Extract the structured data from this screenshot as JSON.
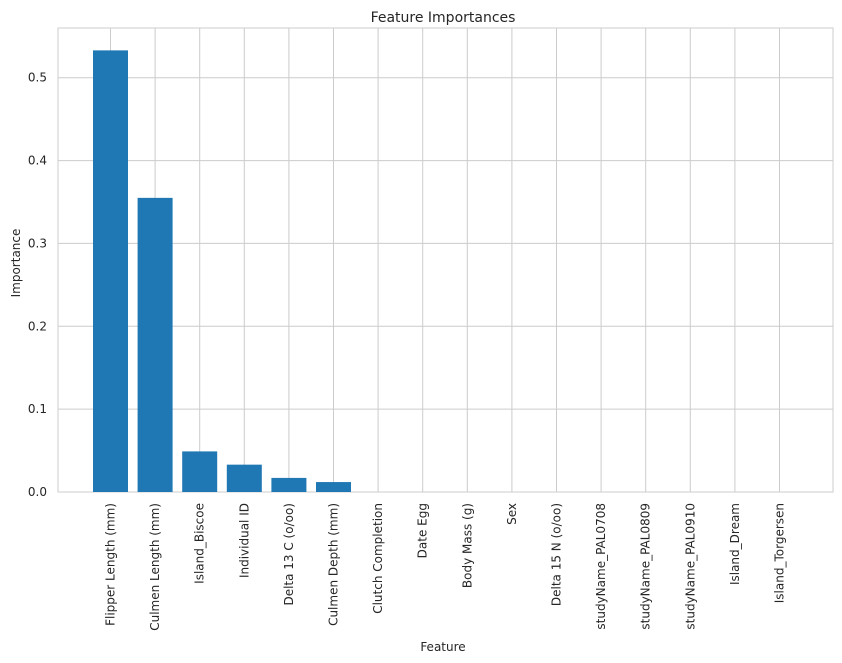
{
  "chart_data": {
    "type": "bar",
    "title": "Feature Importances",
    "xlabel": "Feature",
    "ylabel": "Importance",
    "categories": [
      "Flipper Length (mm)",
      "Culmen Length (mm)",
      "Island_Biscoe",
      "Individual ID",
      "Delta 13 C (o/oo)",
      "Culmen Depth (mm)",
      "Clutch Completion",
      "Date Egg",
      "Body Mass (g)",
      "Sex",
      "Delta 15 N (o/oo)",
      "studyName_PAL0708",
      "studyName_PAL0809",
      "studyName_PAL0910",
      "Island_Dream",
      "Island_Torgersen"
    ],
    "values": [
      0.533,
      0.355,
      0.049,
      0.033,
      0.017,
      0.012,
      0,
      0,
      0,
      0,
      0,
      0,
      0,
      0,
      0,
      0
    ],
    "ylim": [
      0,
      0.56
    ],
    "yticks": [
      "0.0",
      "0.1",
      "0.2",
      "0.3",
      "0.4",
      "0.5"
    ],
    "grid": true,
    "bar_color": "#1f77b4"
  }
}
